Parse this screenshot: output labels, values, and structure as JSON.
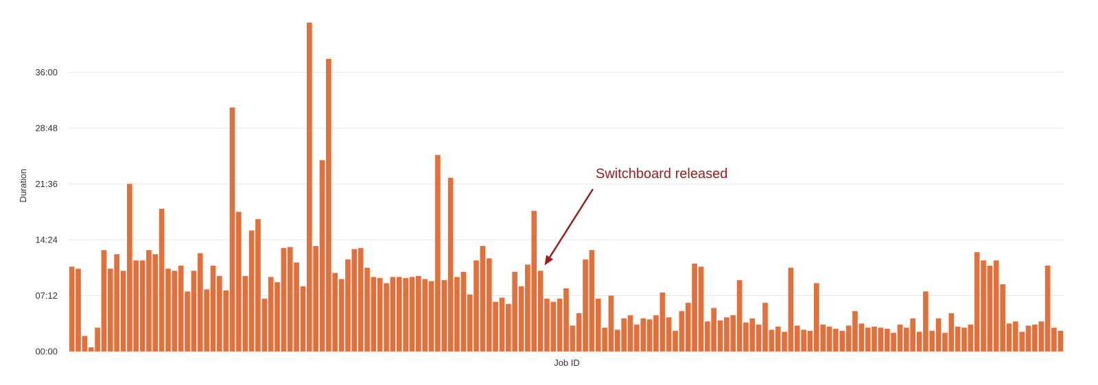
{
  "chart_data": {
    "type": "bar",
    "xlabel": "Job ID",
    "ylabel": "Duration",
    "y_unit": "seconds",
    "ylim": [
      0,
      2592
    ],
    "yticks": [
      0,
      432,
      864,
      1296,
      1728,
      2160
    ],
    "ytick_labels": [
      "00:00",
      "07:12",
      "14:24",
      "21:36",
      "28:48",
      "36:00"
    ],
    "grid": true,
    "legend": "none",
    "colors": {
      "bar": "#e3703a",
      "grid": "#e6e6e6",
      "annotation": "#9b1c1c"
    },
    "values": [
      656,
      640,
      120,
      32,
      184,
      784,
      640,
      752,
      624,
      1296,
      704,
      704,
      784,
      752,
      1104,
      640,
      624,
      664,
      464,
      624,
      760,
      480,
      664,
      584,
      472,
      1888,
      1080,
      584,
      936,
      1024,
      408,
      576,
      536,
      800,
      808,
      688,
      504,
      2544,
      816,
      1480,
      2264,
      608,
      560,
      712,
      792,
      800,
      648,
      576,
      568,
      528,
      576,
      576,
      568,
      576,
      584,
      560,
      544,
      1520,
      552,
      1344,
      576,
      616,
      440,
      704,
      816,
      720,
      384,
      416,
      368,
      616,
      504,
      672,
      1088,
      624,
      408,
      384,
      408,
      488,
      200,
      296,
      712,
      784,
      408,
      184,
      432,
      168,
      256,
      280,
      208,
      256,
      248,
      280,
      456,
      264,
      160,
      312,
      376,
      680,
      656,
      232,
      336,
      240,
      264,
      280,
      552,
      224,
      256,
      208,
      376,
      168,
      192,
      152,
      648,
      200,
      168,
      160,
      528,
      208,
      192,
      176,
      160,
      200,
      312,
      216,
      184,
      192,
      184,
      176,
      144,
      208,
      184,
      256,
      152,
      464,
      160,
      256,
      144,
      296,
      192,
      184,
      208,
      768,
      704,
      664,
      704,
      520,
      216,
      232,
      152,
      200,
      208,
      232,
      664,
      184,
      160
    ],
    "annotations": [
      {
        "text": "Switchboard released",
        "bar_index": 73
      }
    ]
  }
}
